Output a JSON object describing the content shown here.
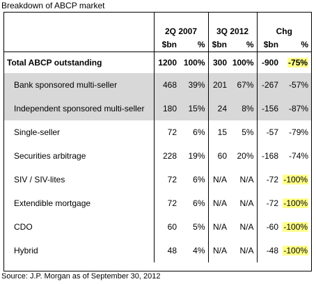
{
  "title": "Breakdown of ABCP market",
  "source": "Source: J.P. Morgan as of September 30, 2012",
  "periods": [
    "2Q 2007",
    "3Q 2012",
    "Chg"
  ],
  "subheaders": [
    "$bn",
    "%",
    "$bn",
    "%",
    "$bn",
    "%"
  ],
  "total": {
    "label": "Total ABCP outstanding",
    "v": [
      "1200",
      "100%",
      "300",
      "100%",
      "-900",
      "-75%"
    ]
  },
  "rows": [
    {
      "label": "Bank sponsored multi-seller",
      "v": [
        "468",
        "39%",
        "201",
        "67%",
        "-267",
        "-57%"
      ]
    },
    {
      "label": "Independent sponsored multi-seller",
      "v": [
        "180",
        "15%",
        "24",
        "8%",
        "-156",
        "-87%"
      ]
    },
    {
      "label": "Single-seller",
      "v": [
        "72",
        "6%",
        "15",
        "5%",
        "-57",
        "-79%"
      ]
    },
    {
      "label": "Securities arbitrage",
      "v": [
        "228",
        "19%",
        "60",
        "20%",
        "-168",
        "-74%"
      ]
    },
    {
      "label": "SIV / SIV-lites",
      "v": [
        "72",
        "6%",
        "N/A",
        "N/A",
        "-72",
        "-100%"
      ]
    },
    {
      "label": "Extendible mortgage",
      "v": [
        "72",
        "6%",
        "N/A",
        "N/A",
        "-72",
        "-100%"
      ]
    },
    {
      "label": "CDO",
      "v": [
        "60",
        "5%",
        "N/A",
        "N/A",
        "-60",
        "-100%"
      ]
    },
    {
      "label": "Hybrid",
      "v": [
        "48",
        "4%",
        "N/A",
        "N/A",
        "-48",
        "-100%"
      ]
    }
  ],
  "highlight_color": "#ffff88",
  "shade_color": "#d8d8d8"
}
